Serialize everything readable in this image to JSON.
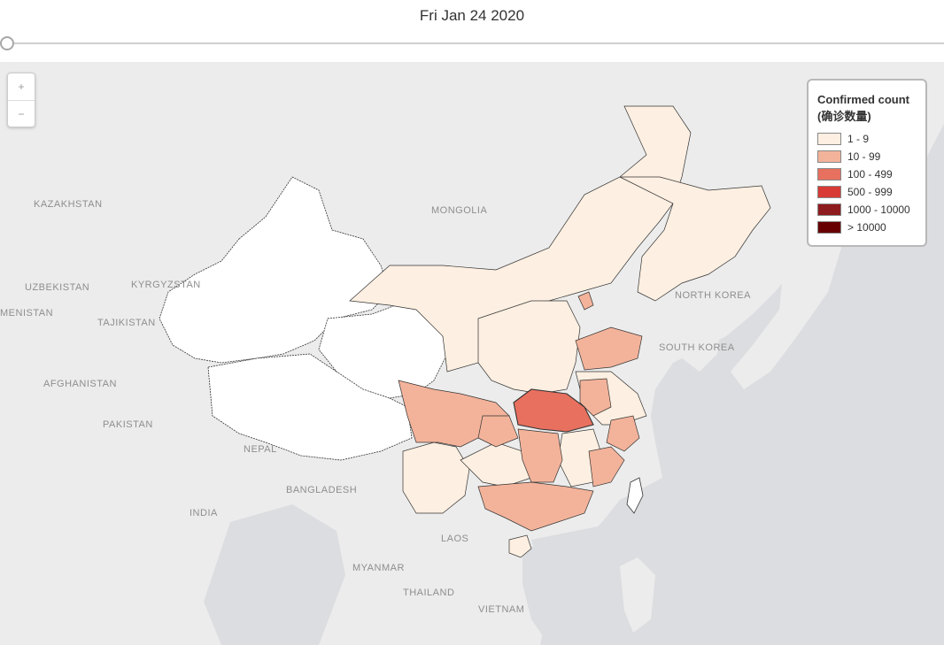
{
  "header": {
    "date": "Fri Jan 24 2020"
  },
  "slider": {
    "position": 0.0
  },
  "zoom": {
    "in_label": "+",
    "out_label": "−"
  },
  "legend": {
    "title": "Confirmed count (确诊数量)",
    "items": [
      {
        "label": "1 - 9",
        "color": "#fdefe1"
      },
      {
        "label": "10 - 99",
        "color": "#f3b39a"
      },
      {
        "label": "100 - 499",
        "color": "#e8705f"
      },
      {
        "label": "500 - 999",
        "color": "#d83a35"
      },
      {
        "label": "1000 - 10000",
        "color": "#8e1b1e"
      },
      {
        "label": "> 10000",
        "color": "#670000"
      }
    ]
  },
  "countries": [
    "KAZAKHSTAN",
    "MONGOLIA",
    "UZBEKISTAN",
    "KYRGYZSTAN",
    "MENISTAN",
    "TAJIKISTAN",
    "AFGHANISTAN",
    "PAKISTAN",
    "NEPAL",
    "BANGLADESH",
    "INDIA",
    "LAOS",
    "MYANMAR",
    "THAILAND",
    "VIETNAM",
    "NORTH KOREA",
    "SOUTH KOREA"
  ],
  "colors": {
    "sea": "#dcdde0",
    "land": "#ececec",
    "no_data": "#ffffff"
  }
}
